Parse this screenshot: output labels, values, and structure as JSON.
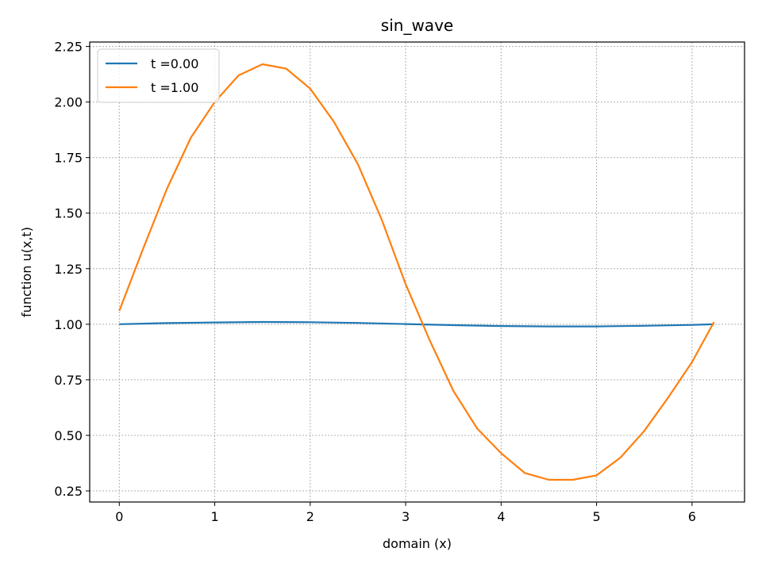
{
  "chart_data": {
    "type": "line",
    "title": "sin_wave",
    "xlabel": "domain (x)",
    "ylabel": "function u(x,t)",
    "xlim": [
      -0.31,
      6.55
    ],
    "ylim": [
      0.2,
      2.27
    ],
    "xticks": [
      0,
      1,
      2,
      3,
      4,
      5,
      6
    ],
    "yticks": [
      0.25,
      0.5,
      0.75,
      1.0,
      1.25,
      1.5,
      1.75,
      2.0,
      2.25
    ],
    "ytick_labels": [
      "0.25",
      "0.50",
      "0.75",
      "1.00",
      "1.25",
      "1.50",
      "1.75",
      "2.00",
      "2.25"
    ],
    "grid": true,
    "legend_position": "top-left",
    "series": [
      {
        "name": "t =0.00",
        "color": "#1f77b4",
        "x": [
          0.0,
          0.5,
          1.0,
          1.5,
          2.0,
          2.5,
          3.0,
          3.5,
          4.0,
          4.5,
          5.0,
          5.5,
          6.0,
          6.23
        ],
        "y": [
          1.0,
          1.005,
          1.008,
          1.01,
          1.009,
          1.006,
          1.001,
          0.996,
          0.992,
          0.99,
          0.99,
          0.993,
          0.997,
          1.0
        ]
      },
      {
        "name": "t =1.00",
        "color": "#ff7f0e",
        "x": [
          0.0,
          0.25,
          0.5,
          0.75,
          1.0,
          1.25,
          1.5,
          1.75,
          2.0,
          2.25,
          2.5,
          2.75,
          3.0,
          3.25,
          3.5,
          3.75,
          4.0,
          4.25,
          4.5,
          4.75,
          5.0,
          5.25,
          5.5,
          5.75,
          6.0,
          6.23
        ],
        "y": [
          1.06,
          1.34,
          1.61,
          1.84,
          2.0,
          2.12,
          2.17,
          2.15,
          2.06,
          1.91,
          1.72,
          1.47,
          1.18,
          0.93,
          0.7,
          0.53,
          0.42,
          0.33,
          0.3,
          0.3,
          0.32,
          0.4,
          0.52,
          0.67,
          0.83,
          1.01
        ]
      }
    ]
  }
}
